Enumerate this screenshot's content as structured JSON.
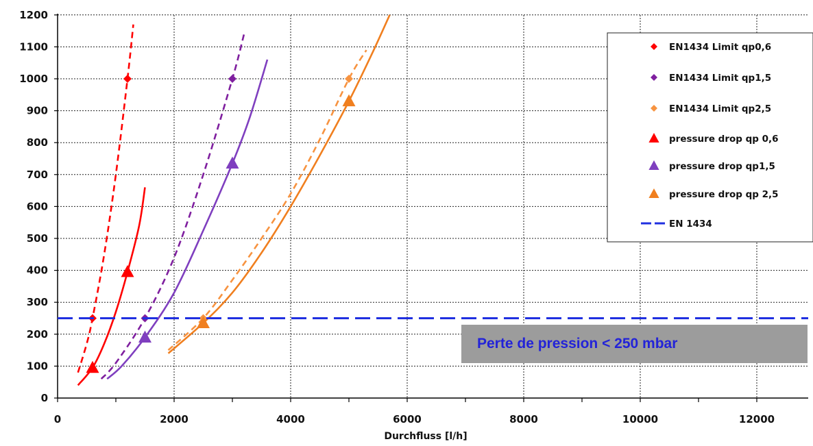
{
  "chart_data": {
    "type": "line",
    "title": "",
    "xlabel": "Durchfluss  [l/h]",
    "ylabel": "",
    "xlim": [
      0,
      13000
    ],
    "ylim": [
      0,
      1200
    ],
    "x_ticks": [
      0,
      2000,
      4000,
      6000,
      8000,
      10000,
      12000
    ],
    "y_ticks": [
      0,
      100,
      200,
      300,
      400,
      500,
      600,
      700,
      800,
      900,
      1000,
      1100,
      1200
    ],
    "grid": true,
    "legend_position": "top-right",
    "series": [
      {
        "name": "EN1434 Limit qp0,6",
        "color": "#ff0000",
        "marker": "diamond",
        "line": "dashed",
        "points": [
          [
            600,
            250
          ],
          [
            1200,
            1000
          ]
        ],
        "curve": [
          [
            350,
            80
          ],
          [
            500,
            170
          ],
          [
            600,
            250
          ],
          [
            800,
            450
          ],
          [
            1000,
            700
          ],
          [
            1200,
            1000
          ],
          [
            1300,
            1170
          ]
        ]
      },
      {
        "name": "EN1434 Limit qp1,5",
        "color": "#7f1f9f",
        "marker": "diamond",
        "line": "dashed",
        "points": [
          [
            1500,
            250
          ],
          [
            3000,
            1000
          ]
        ],
        "curve": [
          [
            750,
            60
          ],
          [
            1000,
            110
          ],
          [
            1500,
            250
          ],
          [
            2000,
            440
          ],
          [
            2500,
            700
          ],
          [
            3000,
            1000
          ],
          [
            3200,
            1140
          ]
        ]
      },
      {
        "name": "EN1434 Limit qp2,5",
        "color": "#f79340",
        "marker": "diamond",
        "line": "dashed",
        "points": [
          [
            2500,
            250
          ],
          [
            5000,
            1000
          ]
        ],
        "curve": [
          [
            1900,
            150
          ],
          [
            2500,
            250
          ],
          [
            3000,
            370
          ],
          [
            3500,
            500
          ],
          [
            4000,
            640
          ],
          [
            4500,
            810
          ],
          [
            5000,
            1000
          ],
          [
            5300,
            1090
          ]
        ]
      },
      {
        "name": "pressure drop qp 0,6",
        "color": "#ff0000",
        "marker": "triangle",
        "line": "solid",
        "points": [
          [
            600,
            95
          ],
          [
            1200,
            395
          ]
        ],
        "curve": [
          [
            350,
            40
          ],
          [
            600,
            95
          ],
          [
            800,
            170
          ],
          [
            1000,
            270
          ],
          [
            1200,
            395
          ],
          [
            1400,
            540
          ],
          [
            1500,
            660
          ]
        ]
      },
      {
        "name": "pressure drop qp1,5",
        "color": "#7f3fbf",
        "marker": "triangle",
        "line": "solid",
        "points": [
          [
            1500,
            190
          ],
          [
            3000,
            735
          ]
        ],
        "curve": [
          [
            850,
            60
          ],
          [
            1100,
            100
          ],
          [
            1500,
            190
          ],
          [
            2000,
            330
          ],
          [
            2500,
            525
          ],
          [
            3000,
            735
          ],
          [
            3300,
            880
          ],
          [
            3600,
            1060
          ]
        ]
      },
      {
        "name": "pressure drop qp 2,5",
        "color": "#f07f1f",
        "marker": "triangle",
        "line": "solid",
        "points": [
          [
            2500,
            235
          ],
          [
            5000,
            930
          ]
        ],
        "curve": [
          [
            1900,
            140
          ],
          [
            2500,
            235
          ],
          [
            3000,
            330
          ],
          [
            3500,
            455
          ],
          [
            4000,
            600
          ],
          [
            4500,
            760
          ],
          [
            5000,
            930
          ],
          [
            5400,
            1080
          ],
          [
            5700,
            1200
          ]
        ]
      },
      {
        "name": "EN 1434",
        "color": "#1f2fe0",
        "marker": "none",
        "line": "dashed",
        "curve": [
          [
            0,
            250
          ],
          [
            13000,
            250
          ]
        ]
      }
    ],
    "annotation": {
      "text": "Perte de pression < 250 mbar",
      "background": "#9c9c9c",
      "text_color": "#2323d8"
    }
  }
}
